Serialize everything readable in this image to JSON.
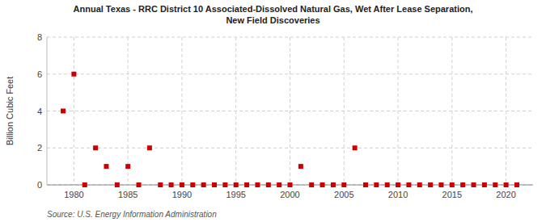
{
  "chart_data": {
    "type": "scatter",
    "title": "Annual Texas - RRC District 10 Associated-Dissolved Natural Gas, Wet After Lease Separation,\nNew Field Discoveries",
    "y_label": "Billion Cubic Feet",
    "source": "Source: U.S. Energy Information Administration",
    "x": [
      1979,
      1980,
      1981,
      1982,
      1983,
      1984,
      1985,
      1986,
      1987,
      1988,
      1989,
      1990,
      1991,
      1992,
      1993,
      1994,
      1995,
      1996,
      1997,
      1998,
      1999,
      2000,
      2001,
      2002,
      2003,
      2004,
      2005,
      2006,
      2007,
      2008,
      2009,
      2010,
      2011,
      2012,
      2013,
      2014,
      2015,
      2016,
      2017,
      2018,
      2019,
      2020,
      2021
    ],
    "values": [
      4.0,
      6.0,
      0.0,
      2.0,
      1.0,
      0.0,
      1.0,
      0.0,
      2.0,
      0.0,
      0.0,
      0.0,
      0.0,
      0.0,
      0.0,
      0.0,
      0.0,
      0.0,
      0.0,
      0.0,
      0.0,
      0.0,
      1.0,
      0.0,
      0.0,
      0.0,
      0.0,
      2.0,
      0.0,
      0.0,
      0.0,
      0.0,
      0.0,
      0.0,
      0.0,
      0.0,
      0.0,
      0.0,
      0.0,
      0.0,
      0.0,
      0.0,
      0.0
    ],
    "color": "#cc0000",
    "marker": "square",
    "xlim": [
      1977.5,
      2022.5
    ],
    "ylim": [
      0,
      8
    ],
    "xticks": [
      1980,
      1985,
      1990,
      1995,
      2000,
      2005,
      2010,
      2015,
      2020
    ],
    "yticks": [
      0,
      2,
      4,
      6,
      8
    ],
    "grid": true
  }
}
